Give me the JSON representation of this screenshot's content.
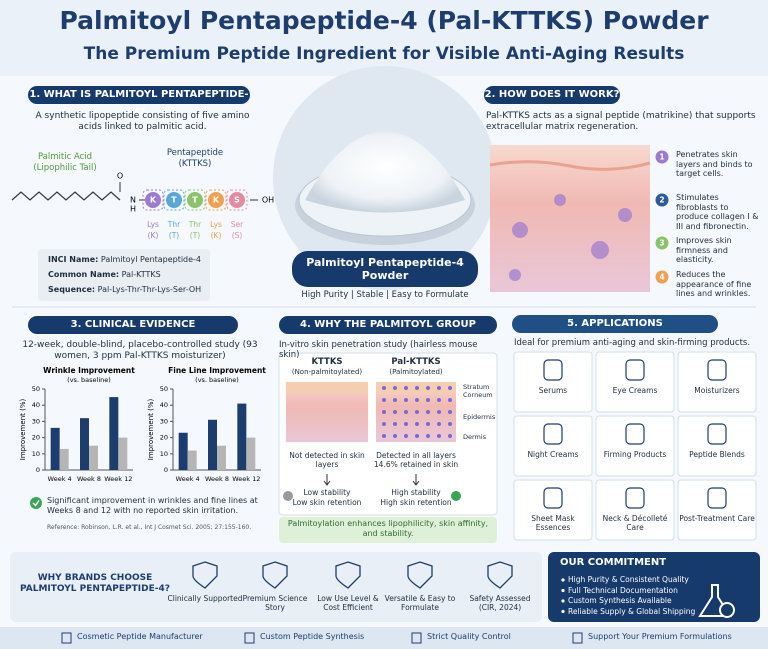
{
  "header": {
    "title": "Palmitoyl Pentapeptide-4 (Pal-KTTKS) Powder",
    "subtitle": "The Premium Peptide Ingredient for Visible Anti-Aging Results"
  },
  "section1": {
    "heading": "1. WHAT IS PALMITOYL PENTAPEPTIDE-4?",
    "description": "A synthetic lipopeptide consisting of five amino acids linked to palmitic acid.",
    "palmitic_label": "Palmitic Acid",
    "palmitic_sub": "(Lipophilic Tail)",
    "pentapeptide_label": "Pentapeptide",
    "pentapeptide_sub": "(KTTKS)",
    "atoms": [
      "O",
      "N",
      "H",
      "OH"
    ],
    "residues": [
      {
        "letter": "K",
        "name": "Lys",
        "code": "(K)",
        "color": "#9b7ad0"
      },
      {
        "letter": "T",
        "name": "Thr",
        "code": "(T)",
        "color": "#5aa7d8"
      },
      {
        "letter": "T",
        "name": "Thr",
        "code": "(T)",
        "color": "#8cc36a"
      },
      {
        "letter": "K",
        "name": "Lys",
        "code": "(K)",
        "color": "#f0a050"
      },
      {
        "letter": "S",
        "name": "Ser",
        "code": "(S)",
        "color": "#e58aa0"
      }
    ],
    "info": [
      {
        "label": "INCI Name:",
        "value": "Palmitoyl Pentapeptide-4"
      },
      {
        "label": "Common Name:",
        "value": "Pal-KTTKS"
      },
      {
        "label": "Sequence:",
        "value": "Pal-Lys-Thr-Thr-Lys-Ser-OH"
      }
    ]
  },
  "center": {
    "product_label": "Palmitoyl Pentapeptide-4 Powder",
    "tagline": "High Purity | Stable | Easy to Formulate"
  },
  "section2": {
    "heading": "2. HOW DOES IT WORK?",
    "description": "Pal-KTTKS acts as a signal peptide (matrikine) that supports extracellular matrix regeneration.",
    "steps": [
      {
        "number": "1",
        "text": "Penetrates skin layers and binds to target cells.",
        "color": "#9b7ad0"
      },
      {
        "number": "2",
        "text": "Stimulates fibroblasts to produce collagen I & III and fibronectin.",
        "color": "#2a5a9a"
      },
      {
        "number": "3",
        "text": "Improves skin firmness and elasticity.",
        "color": "#8cc36a"
      },
      {
        "number": "4",
        "text": "Reduces the appearance of fine lines and wrinkles.",
        "color": "#f0a050"
      }
    ]
  },
  "section3": {
    "heading": "3. CLINICAL EVIDENCE",
    "study": "12-week, double-blind, placebo-controlled study (93 women, 3 ppm Pal-KTTKS moisturizer)",
    "summary": "Significant improvement in wrinkles and fine lines at Weeks 8 and 12 with no reported skin irritation.",
    "reference": "Reference: Robinson, L.R. et al., Int J Cosmet Sci. 2005; 27:155-160."
  },
  "chart_data": [
    {
      "type": "bar",
      "title": "Wrinkle Improvement",
      "subtitle": "(vs. baseline)",
      "y_label": "Improvement (%)",
      "categories": [
        "Week 4",
        "Week 8",
        "Week 12"
      ],
      "series": [
        {
          "color": "#1d3d6e",
          "values": [
            26,
            32,
            45
          ]
        },
        {
          "color": "#b5b5b5",
          "values": [
            13,
            15,
            20
          ]
        }
      ],
      "ylim": [
        0,
        50
      ],
      "yticks": [
        0,
        10,
        20,
        30,
        40,
        50
      ]
    },
    {
      "type": "bar",
      "title": "Fine Line Improvement",
      "subtitle": "(vs. baseline)",
      "y_label": "Improvement (%)",
      "categories": [
        "Week 4",
        "Week 8",
        "Week 12"
      ],
      "series": [
        {
          "color": "#1d3d6e",
          "values": [
            23,
            31,
            41
          ]
        },
        {
          "color": "#b5b5b5",
          "values": [
            12,
            15,
            20
          ]
        }
      ],
      "ylim": [
        0,
        50
      ],
      "yticks": [
        0,
        10,
        20,
        30,
        40,
        50
      ]
    }
  ],
  "section4": {
    "heading": "4. WHY THE PALMITOYL GROUP MATTERS?",
    "description": "In-vitro skin penetration study (hairless mouse skin)",
    "columns": [
      {
        "name": "KTTKS",
        "sub": "(Non-palmitoylated)",
        "result": "Not detected in skin layers",
        "stability": "Low stability",
        "retention": "Low skin retention"
      },
      {
        "name": "Pal-KTTKS",
        "sub": "(Palmitoylated)",
        "result": "Detected in all layers 14.6% retained in skin",
        "stability": "High stability",
        "retention": "High skin retention"
      }
    ],
    "layers": [
      "Stratum Corneum",
      "Epidermis",
      "Dermis"
    ],
    "conclusion": "Palmitoylation enhances lipophilicity, skin affinity, and stability."
  },
  "section5": {
    "heading": "5. APPLICATIONS",
    "description": "Ideal for premium anti-aging and skin-firming products.",
    "items": [
      "Serums",
      "Eye Creams",
      "Moisturizers",
      "Night Creams",
      "Firming Products",
      "Peptide Blends",
      "Sheet Mask Essences",
      "Neck & Décolleté Care",
      "Post-Treatment Care"
    ]
  },
  "why": {
    "heading": "WHY BRANDS CHOOSE PALMITOYL PENTAPEPTIDE-4?",
    "items": [
      "Clinically Supported",
      "Premium Science Story",
      "Low Use Level & Cost Efficient",
      "Versatile & Easy to Formulate",
      "Safety Assessed (CIR, 2024)"
    ]
  },
  "commitment": {
    "heading": "OUR COMMITMENT",
    "items": [
      "High Purity & Consistent Quality",
      "Full Technical Documentation",
      "Custom Synthesis Available",
      "Reliable Supply & Global Shipping"
    ]
  },
  "footer": {
    "items": [
      "Cosmetic Peptide Manufacturer",
      "Custom Peptide Synthesis",
      "Strict Quality Control",
      "Support Your Premium Formulations"
    ]
  }
}
